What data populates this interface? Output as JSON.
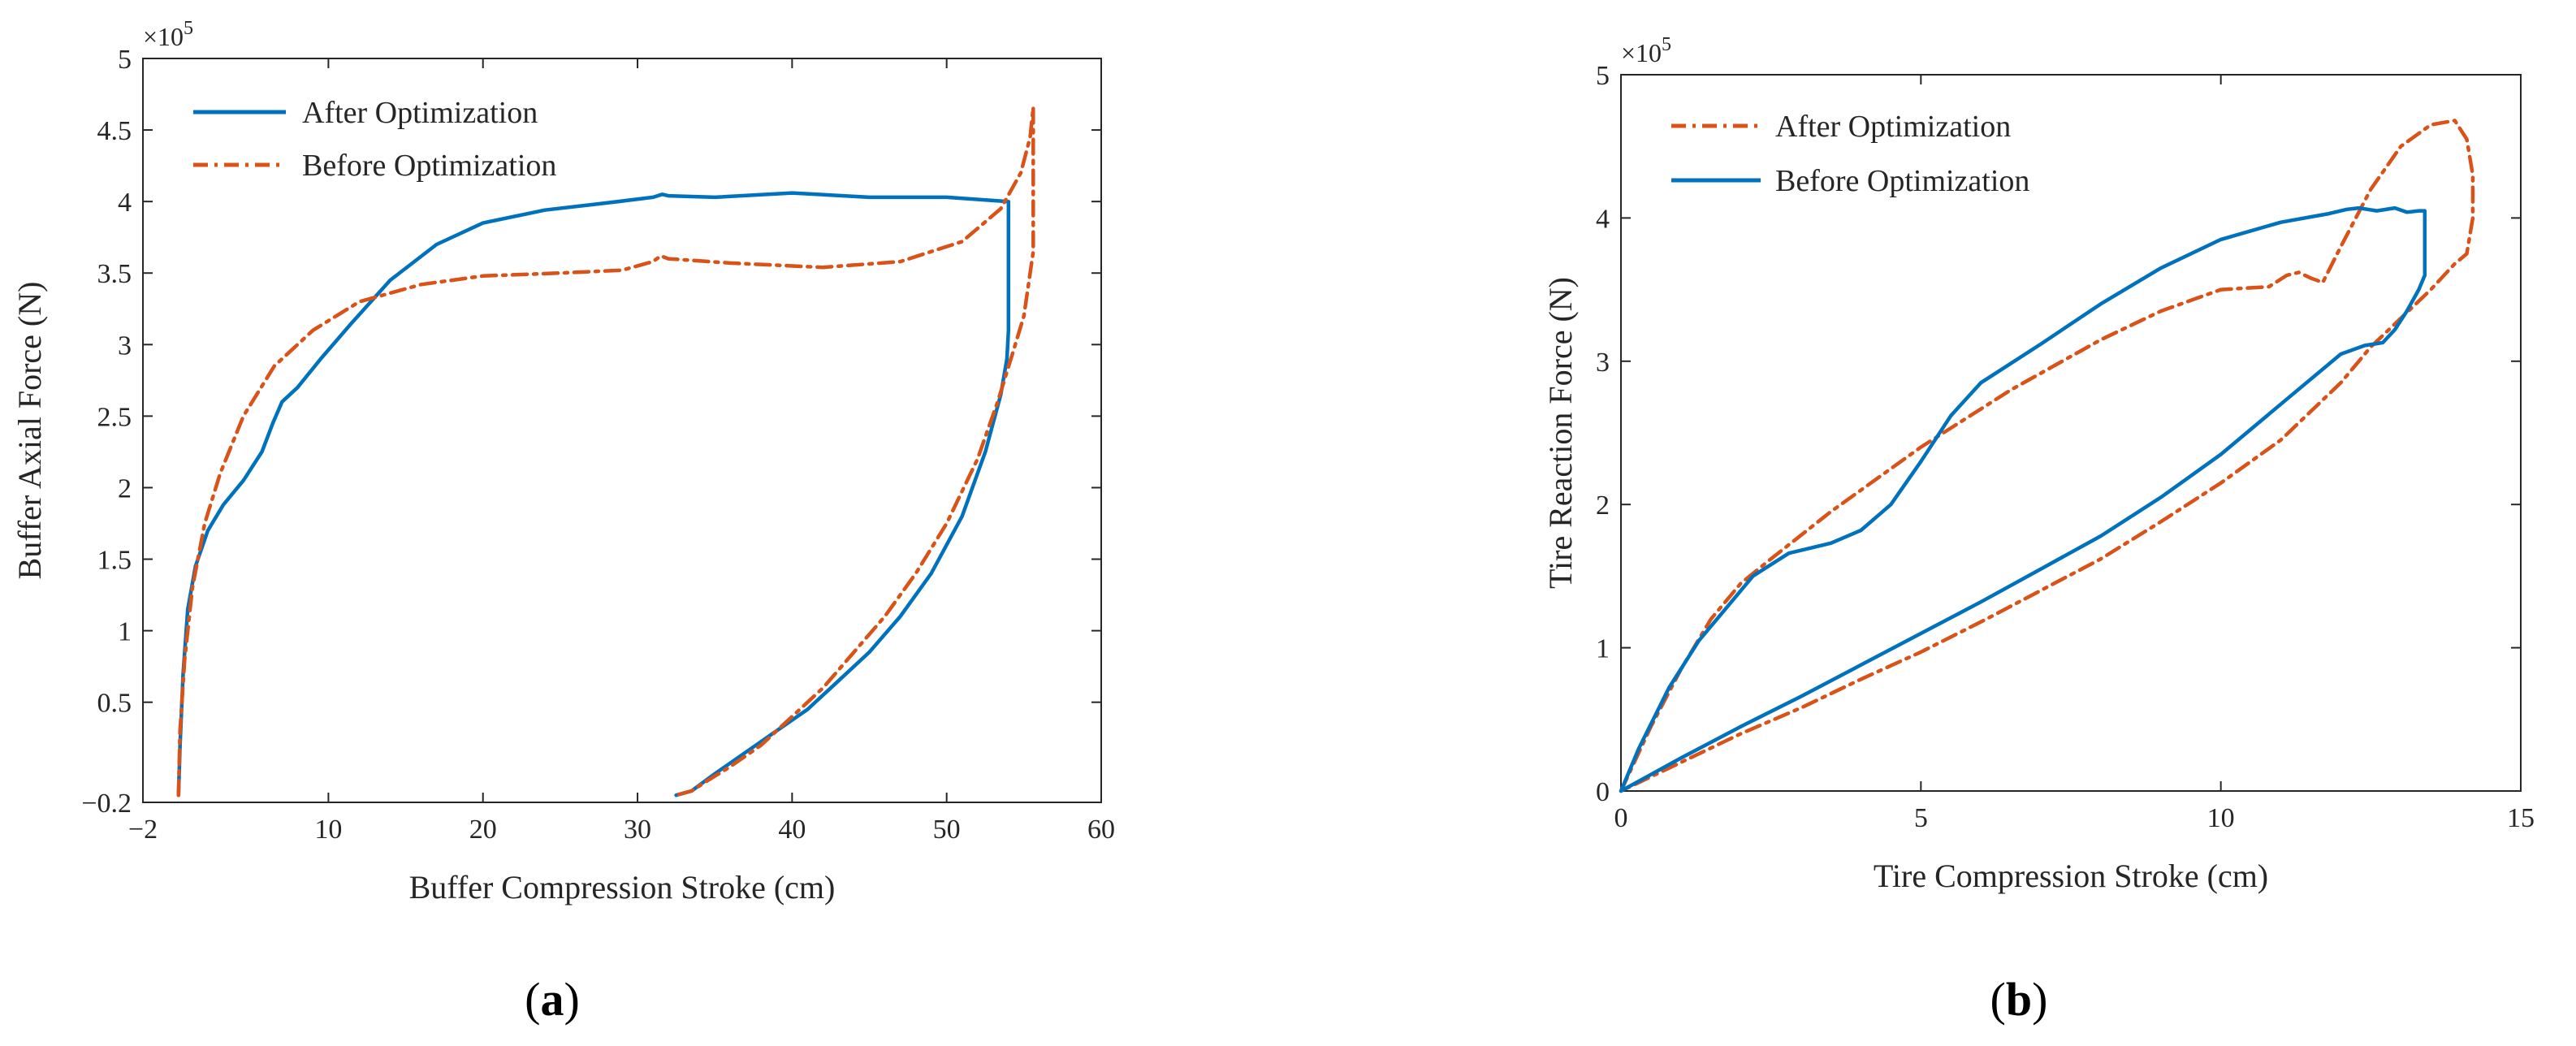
{
  "chart_data": [
    {
      "type": "line",
      "panel_label": {
        "open": "(",
        "letter": "a",
        "close": ")"
      },
      "xlabel": "Buffer Compression Stroke (cm)",
      "ylabel": "Buffer Axial Force (N)",
      "xlim": [
        -2,
        60
      ],
      "ylim": [
        -0.2,
        5
      ],
      "y_exponent_label": "×10",
      "y_exponent_power": "5",
      "x_ticks": [
        -2,
        10,
        20,
        30,
        40,
        50,
        60
      ],
      "x_tick_labels": [
        "−2",
        "10",
        "20",
        "30",
        "40",
        "50",
        "60"
      ],
      "y_ticks": [
        -0.2,
        0.5,
        1,
        1.5,
        2,
        2.5,
        3,
        3.5,
        4,
        4.5,
        5
      ],
      "y_tick_labels": [
        "−0.2",
        "0.5",
        "1",
        "1.5",
        "2",
        "2.5",
        "3",
        "3.5",
        "4",
        "4.5",
        "5"
      ],
      "grid": false,
      "legend_position": "top-left",
      "series": [
        {
          "name": "After Optimization",
          "color": "#0072BD",
          "style": "solid",
          "x": [
            0.3,
            0.4,
            0.6,
            0.9,
            1.4,
            2.2,
            3.2,
            4.5,
            5.7,
            6.4,
            7.0,
            8.0,
            9.5,
            11.5,
            14.0,
            17.0,
            20.0,
            24.0,
            28.0,
            31.0,
            31.3,
            31.6,
            32.0,
            35.0,
            40.0,
            45.0,
            50.0,
            54.0,
            54.0,
            53.9,
            53.5,
            52.5,
            51.0,
            49.0,
            47.0,
            45.0,
            43.0,
            41.0,
            39.0,
            37.0,
            35.0,
            33.5,
            32.5
          ],
          "y": [
            -0.15,
            0.2,
            0.7,
            1.15,
            1.45,
            1.7,
            1.88,
            2.05,
            2.25,
            2.45,
            2.6,
            2.7,
            2.9,
            3.15,
            3.45,
            3.7,
            3.85,
            3.94,
            3.99,
            4.03,
            4.04,
            4.05,
            4.04,
            4.03,
            4.06,
            4.03,
            4.03,
            4.0,
            3.1,
            2.9,
            2.65,
            2.25,
            1.8,
            1.4,
            1.1,
            0.85,
            0.65,
            0.45,
            0.3,
            0.15,
            0.0,
            -0.12,
            -0.15
          ]
        },
        {
          "name": "Before Optimization",
          "color": "#D95319",
          "style": "dashdot",
          "x": [
            0.3,
            0.4,
            0.7,
            1.2,
            2.0,
            3.0,
            4.5,
            6.5,
            9.0,
            12.0,
            16.0,
            20.0,
            25.0,
            29.0,
            31.0,
            31.5,
            32.0,
            36.0,
            42.0,
            47.0,
            51.0,
            53.5,
            54.8,
            55.4,
            55.6,
            55.6,
            55.4,
            55.0,
            54.3,
            53.3,
            52.0,
            50.0,
            48.0,
            46.0,
            44.0,
            42.0,
            40.0,
            38.0,
            36.0,
            34.5,
            33.5,
            32.5
          ],
          "y": [
            -0.15,
            0.3,
            0.8,
            1.3,
            1.75,
            2.1,
            2.5,
            2.85,
            3.1,
            3.3,
            3.42,
            3.48,
            3.5,
            3.52,
            3.58,
            3.62,
            3.6,
            3.57,
            3.54,
            3.58,
            3.72,
            3.95,
            4.2,
            4.45,
            4.66,
            3.65,
            3.5,
            3.2,
            2.95,
            2.6,
            2.2,
            1.75,
            1.4,
            1.1,
            0.85,
            0.6,
            0.4,
            0.2,
            0.05,
            -0.05,
            -0.12,
            -0.15
          ]
        }
      ]
    },
    {
      "type": "line",
      "panel_label": {
        "open": "(",
        "letter": "b",
        "close": ")"
      },
      "xlabel": "Tire Compression Stroke (cm)",
      "ylabel": "Tire Reaction Force (N)",
      "xlim": [
        0,
        15
      ],
      "ylim": [
        0,
        5
      ],
      "y_exponent_label": "×10",
      "y_exponent_power": "5",
      "x_ticks": [
        0,
        5,
        10,
        15
      ],
      "x_tick_labels": [
        "0",
        "5",
        "10",
        "15"
      ],
      "y_ticks": [
        0,
        1,
        2,
        3,
        4,
        5
      ],
      "y_tick_labels": [
        "0",
        "1",
        "2",
        "3",
        "4",
        "5"
      ],
      "grid": false,
      "legend_position": "top-left",
      "series": [
        {
          "name": "After Optimization",
          "color": "#D95319",
          "style": "dashdot",
          "x": [
            0,
            0.5,
            1.0,
            1.5,
            2.0,
            2.5,
            3.5,
            5.0,
            6.5,
            8.0,
            9.0,
            10.0,
            10.8,
            11.1,
            11.3,
            11.5,
            11.7,
            12.0,
            12.5,
            13.0,
            13.5,
            13.9,
            14.1,
            14.2,
            14.2,
            14.1,
            13.9,
            13.5,
            13.0,
            12.5,
            12.0,
            11.0,
            10.0,
            9.0,
            8.0,
            7.0,
            6.0,
            5.0,
            4.0,
            3.0,
            2.0,
            1.0,
            0
          ],
          "y": [
            0,
            0.45,
            0.85,
            1.2,
            1.45,
            1.62,
            1.95,
            2.4,
            2.8,
            3.15,
            3.35,
            3.5,
            3.52,
            3.6,
            3.62,
            3.58,
            3.55,
            3.8,
            4.2,
            4.5,
            4.65,
            4.68,
            4.55,
            4.3,
            4.0,
            3.75,
            3.68,
            3.5,
            3.3,
            3.1,
            2.85,
            2.45,
            2.15,
            1.88,
            1.62,
            1.4,
            1.18,
            0.97,
            0.78,
            0.58,
            0.4,
            0.2,
            0
          ]
        },
        {
          "name": "Before Optimization",
          "color": "#0072BD",
          "style": "solid",
          "x": [
            0,
            0.3,
            0.8,
            1.3,
            1.8,
            2.2,
            2.8,
            3.5,
            4.0,
            4.5,
            5.0,
            5.5,
            6.0,
            7.0,
            8.0,
            9.0,
            10.0,
            11.0,
            11.8,
            12.1,
            12.3,
            12.6,
            12.9,
            13.1,
            13.3,
            13.4,
            13.4,
            13.3,
            13.1,
            12.9,
            12.7,
            12.4,
            12.0,
            11.0,
            10.0,
            9.0,
            8.0,
            7.0,
            6.0,
            5.0,
            4.0,
            3.0,
            2.0,
            1.0,
            0
          ],
          "y": [
            0,
            0.3,
            0.72,
            1.05,
            1.3,
            1.5,
            1.66,
            1.73,
            1.82,
            2.0,
            2.3,
            2.62,
            2.85,
            3.12,
            3.4,
            3.65,
            3.85,
            3.97,
            4.03,
            4.06,
            4.07,
            4.05,
            4.07,
            4.04,
            4.05,
            4.05,
            3.6,
            3.5,
            3.35,
            3.22,
            3.13,
            3.11,
            3.05,
            2.7,
            2.35,
            2.05,
            1.78,
            1.55,
            1.32,
            1.1,
            0.88,
            0.66,
            0.45,
            0.23,
            0
          ]
        }
      ]
    }
  ]
}
